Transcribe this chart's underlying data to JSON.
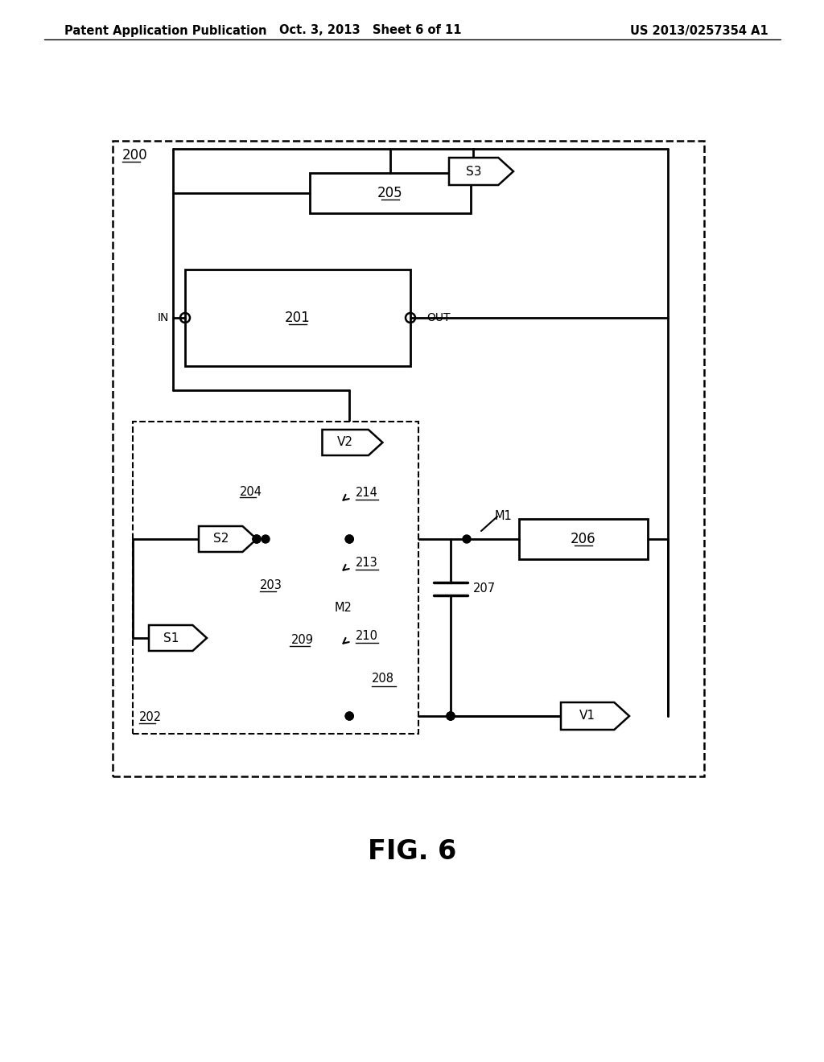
{
  "bg_color": "#ffffff",
  "header_left": "Patent Application Publication",
  "header_mid": "Oct. 3, 2013   Sheet 6 of 11",
  "header_right": "US 2013/0257354 A1",
  "fig_label": "FIG. 6"
}
